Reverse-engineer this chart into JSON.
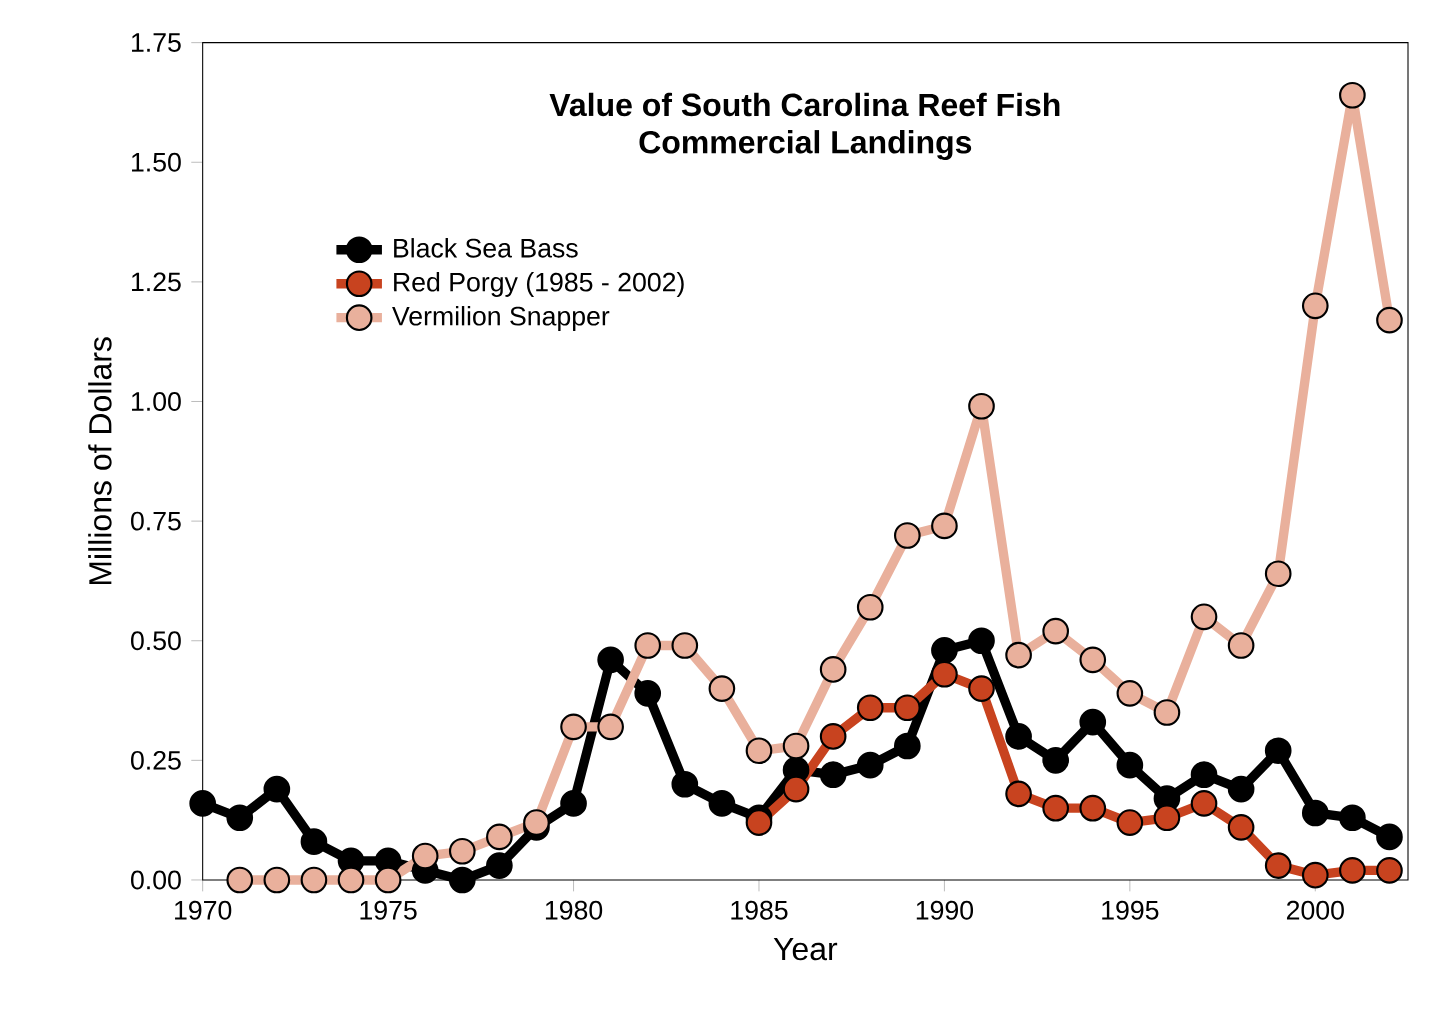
{
  "chart_data": {
    "type": "line",
    "title": "Value of South Carolina Reef Fish\nCommercial Landings",
    "xlabel": "Year",
    "ylabel": "Millions of Dollars",
    "xlim": [
      1970,
      2002.5
    ],
    "xticks": [
      1970,
      1975,
      1980,
      1985,
      1990,
      1995,
      2000
    ],
    "ylim": [
      0,
      1.75
    ],
    "yticks": [
      {
        "value": 0,
        "label": "0.00"
      },
      {
        "value": 0.25,
        "label": "0.25"
      },
      {
        "value": 0.5,
        "label": "0.50"
      },
      {
        "value": 0.75,
        "label": "0.75"
      },
      {
        "value": 1,
        "label": "1.00"
      },
      {
        "value": 1.25,
        "label": "1.25"
      },
      {
        "value": 1.5,
        "label": "1.50"
      },
      {
        "value": 1.75,
        "label": "1.75"
      }
    ],
    "grid": false,
    "legend": "top left",
    "marker": "circle",
    "line_style": "solid",
    "series": [
      {
        "name": "Black Sea Bass",
        "color": "#000000",
        "x": [
          1970,
          1971,
          1972,
          1973,
          1974,
          1975,
          1976,
          1977,
          1978,
          1979,
          1980,
          1981,
          1982,
          1983,
          1984,
          1985,
          1986,
          1987,
          1988,
          1989,
          1990,
          1991,
          1992,
          1993,
          1994,
          1995,
          1996,
          1997,
          1998,
          1999,
          2000,
          2001,
          2002
        ],
        "values": [
          0.16,
          0.13,
          0.19,
          0.08,
          0.04,
          0.04,
          0.02,
          0.0,
          0.03,
          0.11,
          0.16,
          0.46,
          0.39,
          0.2,
          0.16,
          0.13,
          0.23,
          0.22,
          0.24,
          0.28,
          0.48,
          0.5,
          0.3,
          0.25,
          0.33,
          0.24,
          0.17,
          0.22,
          0.19,
          0.27,
          0.14,
          0.13,
          0.09
        ]
      },
      {
        "name": "Red Porgy (1985 - 2002)",
        "color": "#c8431f",
        "x": [
          1985,
          1986,
          1987,
          1988,
          1989,
          1990,
          1991,
          1992,
          1993,
          1994,
          1995,
          1996,
          1997,
          1998,
          1999,
          2000,
          2001,
          2002
        ],
        "values": [
          0.12,
          0.19,
          0.3,
          0.36,
          0.36,
          0.43,
          0.4,
          0.18,
          0.15,
          0.15,
          0.12,
          0.13,
          0.16,
          0.11,
          0.03,
          0.01,
          0.02,
          0.02
        ]
      },
      {
        "name": "Vermilion Snapper",
        "color": "#e9b09c",
        "x": [
          1971,
          1972,
          1973,
          1974,
          1975,
          1976,
          1977,
          1978,
          1979,
          1980,
          1981,
          1982,
          1983,
          1984,
          1985,
          1986,
          1987,
          1988,
          1989,
          1990,
          1991,
          1992,
          1993,
          1994,
          1995,
          1996,
          1997,
          1998,
          1999,
          2000,
          2001,
          2002
        ],
        "values": [
          0,
          0,
          0,
          0,
          0,
          0.05,
          0.06,
          0.09,
          0.12,
          0.32,
          0.32,
          0.49,
          0.49,
          0.4,
          0.27,
          0.28,
          0.44,
          0.57,
          0.72,
          0.74,
          0.99,
          0.47,
          0.52,
          0.46,
          0.39,
          0.35,
          0.55,
          0.49,
          0.64,
          1.2,
          1.64,
          1.17
        ]
      }
    ]
  }
}
